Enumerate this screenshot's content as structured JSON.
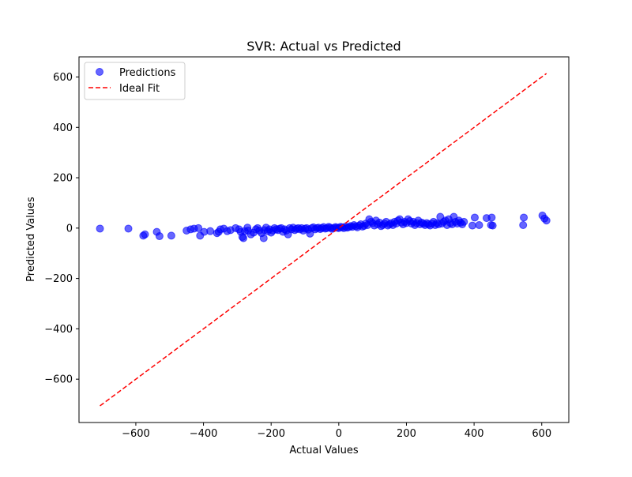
{
  "chart_data": {
    "type": "scatter",
    "title": "SVR: Actual vs Predicted",
    "xlabel": "Actual Values",
    "ylabel": "Predicted Values",
    "xlim": [
      -768,
      680
    ],
    "ylim": [
      -772,
      680
    ],
    "xticks": [
      -600,
      -400,
      -200,
      0,
      200,
      400,
      600
    ],
    "yticks": [
      -600,
      -400,
      -200,
      0,
      200,
      400,
      600
    ],
    "xtick_labels": [
      "−600",
      "−400",
      "−200",
      "0",
      "200",
      "400",
      "600"
    ],
    "ytick_labels": [
      "−600",
      "−400",
      "−200",
      "0",
      "200",
      "400",
      "600"
    ],
    "grid": false,
    "legend_position": "top-left",
    "series": [
      {
        "name": "Predictions",
        "kind": "scatter",
        "color": "#0000ff",
        "points": [
          [
            -706,
            -2
          ],
          [
            -622,
            -2
          ],
          [
            -578,
            -30
          ],
          [
            -573,
            -25
          ],
          [
            -538,
            -15
          ],
          [
            -530,
            -32
          ],
          [
            -495,
            -30
          ],
          [
            -450,
            -10
          ],
          [
            -438,
            -5
          ],
          [
            -428,
            -2
          ],
          [
            -415,
            0
          ],
          [
            -410,
            -30
          ],
          [
            -398,
            -15
          ],
          [
            -380,
            -12
          ],
          [
            -360,
            -20
          ],
          [
            -355,
            -15
          ],
          [
            -350,
            -5
          ],
          [
            -340,
            -2
          ],
          [
            -330,
            -12
          ],
          [
            -320,
            -8
          ],
          [
            -305,
            0
          ],
          [
            -295,
            -5
          ],
          [
            -290,
            -15
          ],
          [
            -285,
            -35
          ],
          [
            -282,
            -40
          ],
          [
            -278,
            -12
          ],
          [
            -270,
            2
          ],
          [
            -268,
            -10
          ],
          [
            -260,
            -25
          ],
          [
            -252,
            -18
          ],
          [
            -245,
            -5
          ],
          [
            -240,
            0
          ],
          [
            -235,
            -10
          ],
          [
            -228,
            -20
          ],
          [
            -222,
            -40
          ],
          [
            -220,
            -8
          ],
          [
            -215,
            2
          ],
          [
            -210,
            -12
          ],
          [
            -205,
            -5
          ],
          [
            -200,
            -18
          ],
          [
            -195,
            -10
          ],
          [
            -190,
            0
          ],
          [
            -185,
            -5
          ],
          [
            -180,
            -8
          ],
          [
            -175,
            -2
          ],
          [
            -170,
            0
          ],
          [
            -165,
            -15
          ],
          [
            -160,
            -5
          ],
          [
            -155,
            -10
          ],
          [
            -150,
            -25
          ],
          [
            -145,
            0
          ],
          [
            -140,
            -5
          ],
          [
            -135,
            2
          ],
          [
            -130,
            -8
          ],
          [
            -125,
            -3
          ],
          [
            -120,
            0
          ],
          [
            -115,
            -5
          ],
          [
            -110,
            0
          ],
          [
            -105,
            -10
          ],
          [
            -100,
            -2
          ],
          [
            -95,
            0
          ],
          [
            -90,
            -6
          ],
          [
            -85,
            -22
          ],
          [
            -80,
            0
          ],
          [
            -75,
            3
          ],
          [
            -70,
            -5
          ],
          [
            -65,
            0
          ],
          [
            -60,
            2
          ],
          [
            -55,
            -4
          ],
          [
            -50,
            0
          ],
          [
            -45,
            4
          ],
          [
            -40,
            -2
          ],
          [
            -35,
            0
          ],
          [
            -30,
            5
          ],
          [
            -25,
            2
          ],
          [
            -20,
            -3
          ],
          [
            -15,
            0
          ],
          [
            -10,
            4
          ],
          [
            -5,
            2
          ],
          [
            0,
            0
          ],
          [
            5,
            5
          ],
          [
            10,
            3
          ],
          [
            15,
            0
          ],
          [
            20,
            6
          ],
          [
            25,
            2
          ],
          [
            30,
            4
          ],
          [
            35,
            8
          ],
          [
            40,
            5
          ],
          [
            45,
            12
          ],
          [
            50,
            7
          ],
          [
            55,
            3
          ],
          [
            60,
            10
          ],
          [
            65,
            15
          ],
          [
            70,
            6
          ],
          [
            75,
            9
          ],
          [
            80,
            18
          ],
          [
            85,
            12
          ],
          [
            90,
            35
          ],
          [
            95,
            25
          ],
          [
            100,
            20
          ],
          [
            105,
            10
          ],
          [
            110,
            30
          ],
          [
            115,
            15
          ],
          [
            120,
            22
          ],
          [
            125,
            8
          ],
          [
            130,
            12
          ],
          [
            135,
            18
          ],
          [
            140,
            25
          ],
          [
            145,
            10
          ],
          [
            150,
            15
          ],
          [
            155,
            20
          ],
          [
            160,
            12
          ],
          [
            165,
            25
          ],
          [
            170,
            18
          ],
          [
            175,
            30
          ],
          [
            180,
            35
          ],
          [
            185,
            22
          ],
          [
            190,
            15
          ],
          [
            195,
            25
          ],
          [
            200,
            20
          ],
          [
            205,
            35
          ],
          [
            210,
            28
          ],
          [
            215,
            18
          ],
          [
            220,
            25
          ],
          [
            225,
            12
          ],
          [
            230,
            20
          ],
          [
            235,
            30
          ],
          [
            240,
            15
          ],
          [
            245,
            22
          ],
          [
            250,
            18
          ],
          [
            255,
            12
          ],
          [
            260,
            20
          ],
          [
            265,
            15
          ],
          [
            270,
            10
          ],
          [
            275,
            18
          ],
          [
            280,
            25
          ],
          [
            285,
            12
          ],
          [
            290,
            20
          ],
          [
            295,
            15
          ],
          [
            300,
            45
          ],
          [
            305,
            18
          ],
          [
            310,
            25
          ],
          [
            315,
            30
          ],
          [
            320,
            12
          ],
          [
            325,
            35
          ],
          [
            330,
            20
          ],
          [
            335,
            15
          ],
          [
            340,
            45
          ],
          [
            345,
            25
          ],
          [
            350,
            18
          ],
          [
            355,
            30
          ],
          [
            360,
            22
          ],
          [
            365,
            15
          ],
          [
            370,
            25
          ],
          [
            395,
            10
          ],
          [
            402,
            42
          ],
          [
            415,
            12
          ],
          [
            437,
            40
          ],
          [
            450,
            12
          ],
          [
            452,
            42
          ],
          [
            455,
            10
          ],
          [
            545,
            12
          ],
          [
            547,
            42
          ],
          [
            602,
            50
          ],
          [
            608,
            38
          ],
          [
            614,
            30
          ]
        ]
      },
      {
        "name": "Ideal Fit",
        "kind": "line",
        "style": "dashed",
        "color": "#ff0000",
        "points": [
          [
            -706,
            -706
          ],
          [
            614,
            614
          ]
        ]
      }
    ]
  }
}
